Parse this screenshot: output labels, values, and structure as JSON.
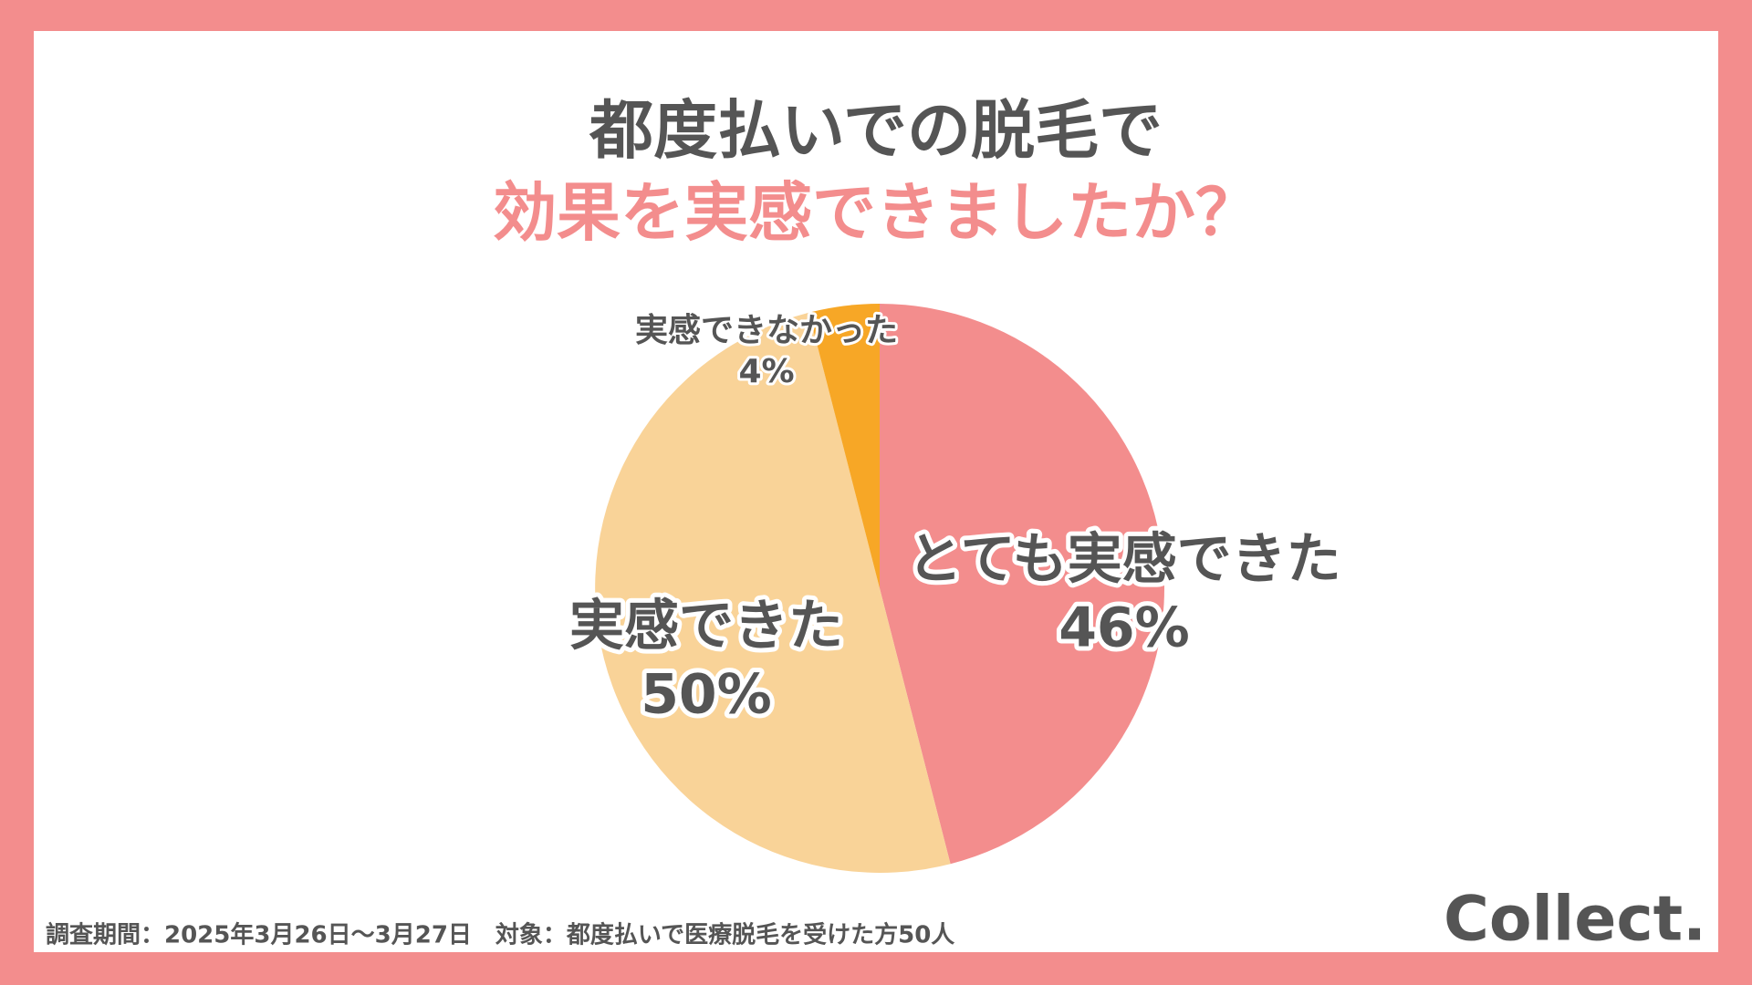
{
  "chart_data": {
    "type": "pie",
    "title": "都度払いでの脱毛で",
    "subtitle": "効果を実感できましたか？",
    "categories": [
      "とても実感できた",
      "実感できた",
      "実感できなかった"
    ],
    "values": [
      46,
      50,
      4
    ],
    "value_labels": [
      "46%",
      "50%",
      "4%"
    ],
    "colors": [
      "#f38d8d",
      "#f9d398",
      "#f7a726"
    ],
    "note": "調査期間：2025年3月26日～3月27日　対象：都度払いで医療脱毛を受けた方50人",
    "logo": "Collect."
  }
}
